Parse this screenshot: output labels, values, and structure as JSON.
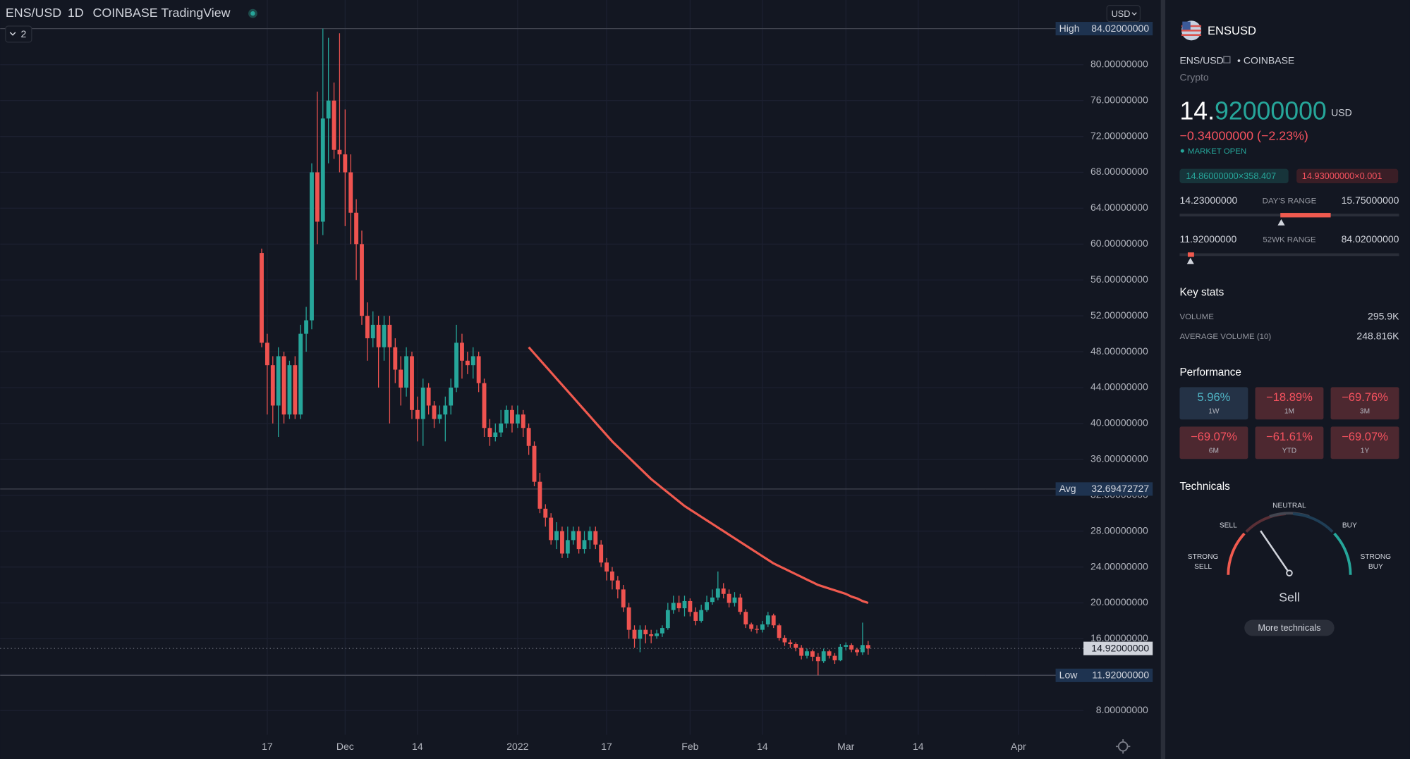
{
  "header": {
    "symbol": "ENS/USD",
    "interval": "1D",
    "exchange": "COINBASE",
    "source": "TradingView",
    "indicators": "2",
    "currency": "USD"
  },
  "chart_data": {
    "type": "candlestick",
    "up_color": "#26a69a",
    "down_color": "#ef5350",
    "xlim": [
      -47,
      147.7
    ],
    "xticks": [
      {
        "value": 1,
        "label": "17"
      },
      {
        "value": 15,
        "label": "Dec"
      },
      {
        "value": 28,
        "label": "14"
      },
      {
        "value": 46,
        "label": "2022"
      },
      {
        "value": 62,
        "label": "17"
      },
      {
        "value": 77,
        "label": "Feb"
      },
      {
        "value": 90,
        "label": "14"
      },
      {
        "value": 105,
        "label": "Mar"
      },
      {
        "value": 118,
        "label": "14"
      },
      {
        "value": 136,
        "label": "Apr"
      }
    ],
    "ylim": [
      5.3,
      87.21
    ],
    "yticks": [
      {
        "value": 8,
        "label": "8.00000000"
      },
      {
        "value": 12,
        "label": "12.00000000"
      },
      {
        "value": 16,
        "label": "16.00000000"
      },
      {
        "value": 20,
        "label": "20.00000000"
      },
      {
        "value": 24,
        "label": "24.00000000"
      },
      {
        "value": 28,
        "label": "28.00000000"
      },
      {
        "value": 32,
        "label": "32.00000000"
      },
      {
        "value": 36,
        "label": "36.00000000"
      },
      {
        "value": 40,
        "label": "40.00000000"
      },
      {
        "value": 44,
        "label": "44.00000000"
      },
      {
        "value": 48,
        "label": "48.00000000"
      },
      {
        "value": 52,
        "label": "52.00000000"
      },
      {
        "value": 56,
        "label": "56.00000000"
      },
      {
        "value": 60,
        "label": "60.00000000"
      },
      {
        "value": 64,
        "label": "64.00000000"
      },
      {
        "value": 68,
        "label": "68.00000000"
      },
      {
        "value": 72,
        "label": "72.00000000"
      },
      {
        "value": 76,
        "label": "76.00000000"
      },
      {
        "value": 80,
        "label": "80.00000000"
      }
    ],
    "grid": true,
    "open": [
      59,
      49,
      46.5,
      42,
      47.5,
      41,
      46.5,
      41,
      50,
      51.5,
      68,
      62.5,
      74,
      76,
      70.5,
      70,
      68,
      63.5,
      60,
      52,
      49.5,
      51,
      48.5,
      51,
      48.5,
      46,
      44,
      47.5,
      41.5,
      40.5,
      44,
      42,
      40.5,
      41,
      42,
      44,
      49,
      47,
      46.5,
      47.5,
      44.5,
      39.5,
      38.5,
      39,
      40,
      41.5,
      40,
      41,
      39.5,
      37.5,
      33.5,
      30.5,
      29.5,
      27,
      28,
      25.5,
      27,
      28,
      26,
      27,
      28,
      26.5,
      24.5,
      23.5,
      22.5,
      21.5,
      19.5,
      17,
      16,
      17,
      16.5,
      16.3,
      16.6,
      17.2,
      19.2,
      20,
      19.4,
      20.2,
      19,
      18,
      19.2,
      20.1,
      20.6,
      21.6,
      21,
      20,
      20.6,
      19,
      17.6,
      17.1,
      17,
      17.6,
      18.6,
      17.5,
      16.1,
      15.6,
      15.4,
      15,
      14.1,
      14.6,
      14,
      13.5,
      14.6,
      14.1,
      13.6,
      15.1,
      15.3,
      14.8,
      14.5,
      15.3
    ],
    "high": [
      59.5,
      50,
      47.5,
      48.5,
      48,
      47,
      47.5,
      51,
      53,
      69,
      77,
      84.02,
      83,
      78,
      83.5,
      75,
      70,
      65,
      61.5,
      53.5,
      52.5,
      52,
      52,
      52,
      49.5,
      47.5,
      48.5,
      48,
      43,
      45,
      44.5,
      42.5,
      42,
      43,
      45,
      51,
      50,
      48,
      48.5,
      48,
      45,
      40.5,
      40,
      41.5,
      42,
      42,
      42,
      41.5,
      40,
      38,
      34.5,
      31,
      30,
      29,
      28.5,
      28.5,
      28.5,
      28.5,
      28,
      28.5,
      28.5,
      27,
      25,
      24,
      23,
      22,
      20,
      17.5,
      17.5,
      17.5,
      17,
      17,
      17.5,
      20,
      20.8,
      20.8,
      20.8,
      20.5,
      19.5,
      19.8,
      20.8,
      21.5,
      23.5,
      22.2,
      21.5,
      21.2,
      21,
      19.3,
      17.8,
      17.5,
      18,
      19,
      18.8,
      17.7,
      16.4,
      15.9,
      15.6,
      15.3,
      14.9,
      14.8,
      14.4,
      14.9,
      14.8,
      14.4,
      15.4,
      15.6,
      15.5,
      15,
      17.8,
      15.75
    ],
    "low": [
      48.5,
      41,
      40,
      38.5,
      40,
      40.5,
      40.5,
      40.5,
      48,
      50.5,
      60,
      61,
      69,
      69.5,
      68,
      62,
      60,
      56,
      51,
      47,
      48.5,
      44,
      47,
      40,
      44.5,
      42,
      43,
      40.5,
      38,
      37.5,
      41,
      39.5,
      40,
      38,
      41,
      43.5,
      45,
      45.5,
      45,
      43.5,
      38.5,
      37.5,
      38,
      38.5,
      39.5,
      39,
      39.5,
      38.5,
      36.5,
      33,
      30,
      28.5,
      26.5,
      26,
      25,
      25,
      26.5,
      25.5,
      25.5,
      26,
      26,
      24,
      22.5,
      21.5,
      20.5,
      19,
      16,
      15,
      14.5,
      15.5,
      15.5,
      16,
      16.2,
      17,
      18.8,
      19,
      18.5,
      18.5,
      17.5,
      17.8,
      19,
      19.8,
      20.3,
      20.5,
      19.5,
      19.6,
      18.7,
      17.2,
      16.8,
      16.6,
      16.7,
      17.3,
      17.2,
      15.8,
      15.2,
      15,
      14.6,
      13.7,
      13.8,
      13.5,
      11.92,
      13.3,
      13.8,
      13.2,
      13.5,
      14.7,
      14.5,
      14.1,
      14.2,
      14.23
    ],
    "close": [
      49,
      46.5,
      42,
      47.5,
      41,
      46.5,
      41,
      50,
      51.5,
      68,
      62.5,
      74,
      76,
      70.5,
      70,
      68,
      63.5,
      60,
      52,
      49.5,
      51,
      48.5,
      51,
      48.5,
      46,
      44,
      47.5,
      41.5,
      40.5,
      44,
      42,
      40.5,
      41,
      42,
      44,
      49,
      47,
      46.5,
      47.5,
      44.5,
      39.5,
      38.5,
      39,
      40,
      41.5,
      40,
      41,
      39.5,
      37.5,
      33.5,
      30.5,
      29.5,
      27,
      28,
      25.5,
      27,
      28,
      26,
      27,
      28,
      26.5,
      24.5,
      23.5,
      22.5,
      21.5,
      19.5,
      17,
      16,
      17,
      16.5,
      16.3,
      16.6,
      17.2,
      19.2,
      20,
      19.4,
      20.2,
      19,
      18,
      19.2,
      20.1,
      20.6,
      21.6,
      21,
      20,
      20.6,
      19,
      17.6,
      17.1,
      17,
      17.6,
      18.6,
      17.5,
      16.1,
      15.6,
      15.4,
      15,
      14.1,
      14.6,
      14,
      13.5,
      14.6,
      14.1,
      13.6,
      15.1,
      15.3,
      14.8,
      14.5,
      15.3,
      14.92
    ],
    "series": [
      {
        "color": "#f05a4f",
        "values": [
          null,
          null,
          null,
          null,
          null,
          null,
          null,
          null,
          null,
          null,
          null,
          null,
          null,
          null,
          null,
          null,
          null,
          null,
          null,
          null,
          null,
          null,
          null,
          null,
          null,
          null,
          null,
          null,
          null,
          null,
          null,
          null,
          null,
          null,
          null,
          null,
          null,
          null,
          null,
          null,
          null,
          null,
          null,
          null,
          null,
          null,
          null,
          null,
          48.5,
          47.8,
          47.1,
          46.4,
          45.7,
          45,
          44.3,
          43.6,
          42.9,
          42.2,
          41.5,
          40.8,
          40.1,
          39.4,
          38.7,
          38,
          37.4,
          36.8,
          36.2,
          35.6,
          35,
          34.4,
          33.8,
          33.3,
          32.8,
          32.3,
          31.8,
          31.3,
          30.8,
          30.4,
          30,
          29.6,
          29.2,
          28.8,
          28.4,
          28,
          27.6,
          27.2,
          26.8,
          26.4,
          26,
          25.6,
          25.2,
          24.8,
          24.4,
          24.1,
          23.8,
          23.5,
          23.2,
          22.9,
          22.6,
          22.3,
          22,
          21.8,
          21.6,
          21.4,
          21.2,
          21,
          20.7,
          20.5,
          20.2,
          20
        ]
      }
    ],
    "levels": [
      {
        "name": "High",
        "value": 84.02,
        "label": "84.02000000"
      },
      {
        "name": "Avg",
        "value": 32.69472727,
        "label": "32.69472727"
      },
      {
        "value": 14.92,
        "label": "14.92000000"
      },
      {
        "name": "Low",
        "value": 11.92,
        "label": "11.92000000"
      }
    ]
  },
  "panel": {
    "symbol": "ENSUSD",
    "pair": "ENS/USD",
    "exchange": "• COINBASE",
    "category": "Crypto",
    "price_int": "14.",
    "price_dec": "92000000",
    "price_unit": "USD",
    "change": "−0.34000000 (−2.23%)",
    "status": "MARKET OPEN",
    "bid": "14.86000000×358.407",
    "ask": "14.93000000×0.001",
    "days_range": {
      "low": "14.23000000",
      "label": "DAY'S RANGE",
      "high": "15.75000000"
    },
    "wk_range": {
      "low": "11.92000000",
      "label": "52WK RANGE",
      "high": "84.02000000"
    },
    "key_stats_title": "Key stats",
    "stats": [
      {
        "label": "VOLUME",
        "value": "295.9K"
      },
      {
        "label": "AVERAGE VOLUME (10)",
        "value": "248.816K"
      }
    ],
    "performance_title": "Performance",
    "performance": [
      {
        "value": "5.96%",
        "period": "1W"
      },
      {
        "value": "−18.89%",
        "period": "1M"
      },
      {
        "value": "−69.76%",
        "period": "3M"
      },
      {
        "value": "−69.07%",
        "period": "6M"
      },
      {
        "value": "−61.61%",
        "period": "YTD"
      },
      {
        "value": "−69.07%",
        "period": "1Y"
      }
    ],
    "technicals_title": "Technicals",
    "gauge": {
      "strong_sell": [
        "STRONG",
        "SELL"
      ],
      "sell": "SELL",
      "neutral": "NEUTRAL",
      "buy": "BUY",
      "strong_buy": [
        "STRONG",
        "BUY"
      ]
    },
    "verdict": "Sell",
    "more": "More technicals"
  }
}
